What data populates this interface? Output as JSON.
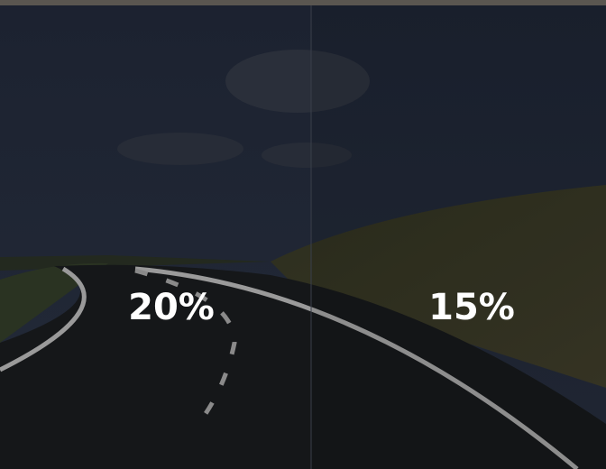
{
  "panels": [
    {
      "label": "20%"
    },
    {
      "label": "15%"
    }
  ]
}
